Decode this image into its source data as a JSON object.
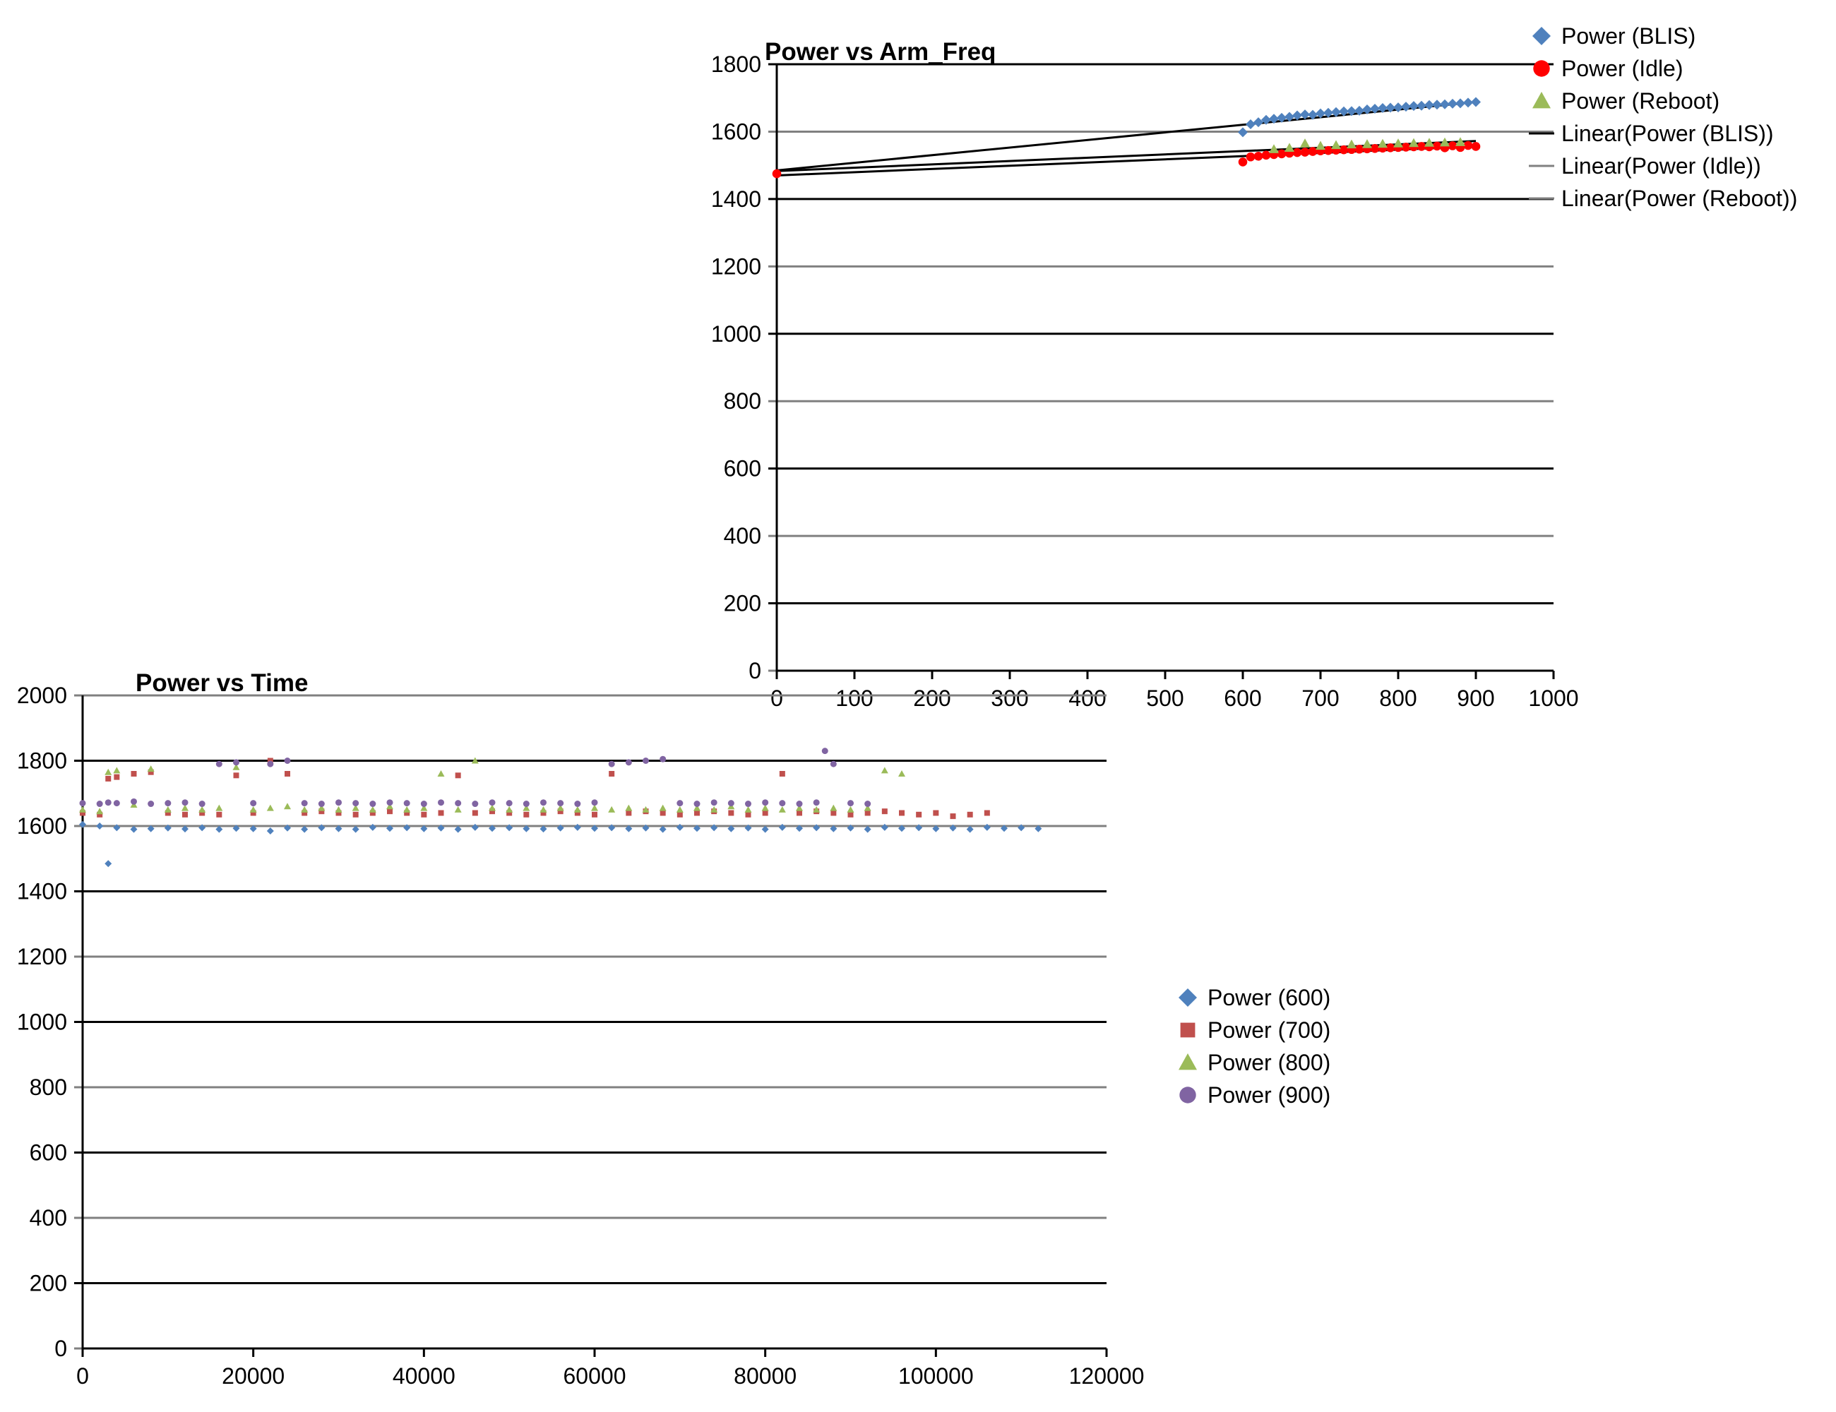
{
  "chart_data": [
    {
      "type": "scatter",
      "title": "Power vs Arm_Freq",
      "xlabel": "",
      "ylabel": "",
      "xlim": [
        0,
        1000
      ],
      "ylim": [
        0,
        1800
      ],
      "x_ticks": [
        0,
        100,
        200,
        300,
        400,
        500,
        600,
        700,
        800,
        900,
        1000
      ],
      "y_ticks": [
        0,
        200,
        400,
        600,
        800,
        1000,
        1200,
        1400,
        1600,
        1800
      ],
      "grid": true,
      "legend_position": "top-right",
      "legend": [
        "Power (BLIS)",
        "Power (Idle)",
        "Power (Reboot)",
        "Linear(Power (BLIS))",
        "Linear(Power (Idle))",
        "Linear(Power (Reboot))"
      ],
      "series": [
        {
          "name": "Power (BLIS)",
          "marker": "diamond",
          "color": "#4f81bd",
          "x": [
            600,
            610,
            620,
            630,
            640,
            650,
            660,
            670,
            680,
            690,
            700,
            710,
            720,
            730,
            740,
            750,
            760,
            770,
            780,
            790,
            800,
            810,
            820,
            830,
            840,
            850,
            860,
            870,
            880,
            890,
            900
          ],
          "y": [
            1598,
            1622,
            1628,
            1635,
            1638,
            1641,
            1644,
            1648,
            1651,
            1650,
            1654,
            1656,
            1658,
            1660,
            1661,
            1662,
            1666,
            1668,
            1670,
            1671,
            1672,
            1674,
            1676,
            1677,
            1679,
            1680,
            1681,
            1683,
            1684,
            1686,
            1688
          ]
        },
        {
          "name": "Power (Idle)",
          "marker": "circle",
          "color": "#ff0000",
          "x": [
            0,
            600,
            610,
            620,
            630,
            640,
            650,
            660,
            670,
            680,
            690,
            700,
            710,
            720,
            730,
            740,
            750,
            760,
            770,
            780,
            790,
            800,
            810,
            820,
            830,
            840,
            850,
            860,
            870,
            880,
            890,
            900
          ],
          "y": [
            1475,
            1510,
            1525,
            1527,
            1530,
            1532,
            1534,
            1536,
            1538,
            1539,
            1541,
            1543,
            1544,
            1545,
            1546,
            1547,
            1548,
            1549,
            1550,
            1551,
            1552,
            1553,
            1554,
            1555,
            1556,
            1555,
            1557,
            1552,
            1558,
            1553,
            1559,
            1556
          ]
        },
        {
          "name": "Power (Reboot)",
          "marker": "triangle",
          "color": "#9bbb59",
          "x": [
            640,
            660,
            680,
            700,
            720,
            740,
            760,
            780,
            800,
            820,
            840,
            860,
            880
          ],
          "y": [
            1548,
            1552,
            1565,
            1558,
            1560,
            1562,
            1563,
            1564,
            1565,
            1566,
            1567,
            1568,
            1569
          ]
        }
      ],
      "trendlines": [
        {
          "name": "Linear(Power (BLIS))",
          "x": [
            0,
            900
          ],
          "y": [
            1485,
            1688
          ]
        },
        {
          "name": "Linear(Power (Idle))",
          "x": [
            0,
            900
          ],
          "y": [
            1470,
            1556
          ]
        },
        {
          "name": "Linear(Power (Reboot))",
          "x": [
            0,
            900
          ],
          "y": [
            1483,
            1572
          ]
        }
      ]
    },
    {
      "type": "scatter",
      "title": "Power vs Time",
      "xlabel": "",
      "ylabel": "",
      "xlim": [
        0,
        120000
      ],
      "ylim": [
        0,
        2000
      ],
      "x_ticks": [
        0,
        20000,
        40000,
        60000,
        80000,
        100000,
        120000
      ],
      "y_ticks": [
        0,
        200,
        400,
        600,
        800,
        1000,
        1200,
        1400,
        1600,
        1800,
        2000
      ],
      "grid": true,
      "legend_position": "right",
      "legend": [
        "Power (600)",
        "Power (700)",
        "Power (800)",
        "Power (900)"
      ],
      "series": [
        {
          "name": "Power (600)",
          "marker": "diamond",
          "color": "#4f81bd",
          "x": [
            0,
            2000,
            3000,
            4000,
            6000,
            8000,
            10000,
            12000,
            14000,
            16000,
            18000,
            20000,
            22000,
            24000,
            26000,
            28000,
            30000,
            32000,
            34000,
            36000,
            38000,
            40000,
            42000,
            44000,
            46000,
            48000,
            50000,
            52000,
            54000,
            56000,
            58000,
            60000,
            62000,
            64000,
            66000,
            68000,
            70000,
            72000,
            74000,
            76000,
            78000,
            80000,
            82000,
            84000,
            86000,
            88000,
            90000,
            92000,
            94000,
            96000,
            98000,
            100000,
            102000,
            104000,
            106000,
            108000,
            110000,
            112000
          ],
          "y": [
            1605,
            1600,
            1485,
            1595,
            1590,
            1592,
            1594,
            1591,
            1595,
            1590,
            1593,
            1592,
            1585,
            1594,
            1590,
            1595,
            1592,
            1590,
            1596,
            1593,
            1595,
            1592,
            1594,
            1590,
            1596,
            1593,
            1595,
            1592,
            1591,
            1594,
            1596,
            1593,
            1595,
            1592,
            1594,
            1590,
            1596,
            1593,
            1595,
            1592,
            1594,
            1590,
            1596,
            1593,
            1595,
            1592,
            1594,
            1590,
            1596,
            1593,
            1595,
            1592,
            1594,
            1590,
            1596,
            1593,
            1595,
            1592
          ]
        },
        {
          "name": "Power (700)",
          "marker": "square",
          "color": "#c0504d",
          "x": [
            0,
            2000,
            3000,
            4000,
            6000,
            8000,
            10000,
            12000,
            14000,
            16000,
            18000,
            20000,
            22000,
            24000,
            26000,
            28000,
            30000,
            32000,
            34000,
            36000,
            38000,
            40000,
            42000,
            44000,
            46000,
            48000,
            50000,
            52000,
            54000,
            56000,
            58000,
            60000,
            62000,
            64000,
            66000,
            68000,
            70000,
            72000,
            74000,
            76000,
            78000,
            80000,
            82000,
            84000,
            86000,
            88000,
            90000,
            92000,
            94000,
            96000,
            98000,
            100000,
            102000,
            104000,
            106000
          ],
          "y": [
            1640,
            1635,
            1745,
            1750,
            1760,
            1765,
            1640,
            1635,
            1640,
            1635,
            1755,
            1640,
            1800,
            1760,
            1640,
            1645,
            1640,
            1635,
            1640,
            1645,
            1640,
            1635,
            1640,
            1755,
            1640,
            1645,
            1640,
            1635,
            1640,
            1645,
            1640,
            1635,
            1760,
            1640,
            1645,
            1640,
            1635,
            1640,
            1645,
            1640,
            1635,
            1640,
            1760,
            1640,
            1645,
            1640,
            1635,
            1640,
            1645,
            1640,
            1635,
            1640,
            1630,
            1635,
            1640
          ]
        },
        {
          "name": "Power (800)",
          "marker": "triangle",
          "color": "#9bbb59",
          "x": [
            0,
            2000,
            3000,
            4000,
            6000,
            8000,
            10000,
            12000,
            14000,
            16000,
            18000,
            20000,
            22000,
            24000,
            26000,
            28000,
            30000,
            32000,
            34000,
            36000,
            38000,
            40000,
            42000,
            44000,
            46000,
            48000,
            50000,
            52000,
            54000,
            56000,
            58000,
            60000,
            62000,
            64000,
            66000,
            68000,
            70000,
            72000,
            74000,
            76000,
            78000,
            80000,
            82000,
            84000,
            86000,
            88000,
            90000,
            92000,
            94000,
            96000
          ],
          "y": [
            1650,
            1645,
            1765,
            1770,
            1665,
            1775,
            1650,
            1655,
            1650,
            1655,
            1780,
            1650,
            1655,
            1660,
            1650,
            1655,
            1650,
            1655,
            1650,
            1660,
            1650,
            1655,
            1760,
            1650,
            1800,
            1655,
            1650,
            1655,
            1650,
            1655,
            1650,
            1655,
            1650,
            1655,
            1650,
            1655,
            1650,
            1655,
            1650,
            1660,
            1650,
            1655,
            1650,
            1655,
            1650,
            1655,
            1650,
            1655,
            1770,
            1760
          ]
        },
        {
          "name": "Power (900)",
          "marker": "circle",
          "color": "#8064a2",
          "x": [
            0,
            2000,
            3000,
            4000,
            6000,
            8000,
            10000,
            12000,
            14000,
            16000,
            18000,
            20000,
            22000,
            24000,
            26000,
            28000,
            30000,
            32000,
            34000,
            36000,
            38000,
            40000,
            42000,
            44000,
            46000,
            48000,
            50000,
            52000,
            54000,
            56000,
            58000,
            60000,
            62000,
            64000,
            66000,
            68000,
            70000,
            72000,
            74000,
            76000,
            78000,
            80000,
            82000,
            84000,
            86000,
            87000,
            88000,
            90000,
            92000
          ],
          "y": [
            1670,
            1668,
            1672,
            1670,
            1675,
            1668,
            1670,
            1672,
            1668,
            1790,
            1795,
            1670,
            1790,
            1800,
            1670,
            1668,
            1672,
            1670,
            1668,
            1672,
            1670,
            1668,
            1672,
            1670,
            1668,
            1672,
            1670,
            1668,
            1672,
            1670,
            1668,
            1672,
            1790,
            1795,
            1800,
            1805,
            1670,
            1668,
            1672,
            1670,
            1668,
            1672,
            1670,
            1668,
            1672,
            1830,
            1790,
            1670,
            1668
          ]
        }
      ]
    }
  ]
}
